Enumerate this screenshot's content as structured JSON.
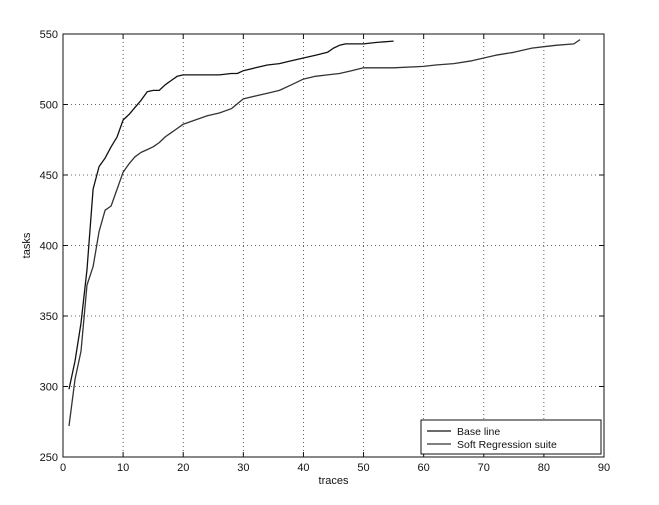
{
  "chart_data": {
    "type": "line",
    "xlabel": "traces",
    "ylabel": "tasks",
    "xlim": [
      0,
      90
    ],
    "ylim": [
      250,
      550
    ],
    "xticks": [
      0,
      10,
      20,
      30,
      40,
      50,
      60,
      70,
      80,
      90
    ],
    "yticks": [
      250,
      300,
      350,
      400,
      450,
      500,
      550
    ],
    "grid": true,
    "legend_position": "bottom-right",
    "series": [
      {
        "name": "Base line",
        "color": "#111111",
        "x": [
          1,
          2,
          3,
          4,
          5,
          6,
          7,
          8,
          9,
          10,
          11,
          12,
          13,
          14,
          15,
          16,
          17,
          18,
          19,
          20,
          22,
          24,
          26,
          28,
          29,
          30,
          32,
          34,
          36,
          38,
          40,
          42,
          44,
          45,
          46,
          47,
          48,
          50,
          52,
          55
        ],
        "y": [
          298,
          318,
          345,
          383,
          440,
          456,
          462,
          470,
          477,
          489,
          493,
          498,
          503,
          509,
          510,
          510,
          514,
          517,
          520,
          521,
          521,
          521,
          521,
          522,
          522,
          524,
          526,
          528,
          529,
          531,
          533,
          535,
          537,
          540,
          542,
          543,
          543,
          543,
          544,
          545
        ]
      },
      {
        "name": "Soft Regression suite",
        "color": "#333333",
        "x": [
          1,
          2,
          3,
          4,
          5,
          6,
          7,
          8,
          9,
          10,
          11,
          12,
          13,
          14,
          15,
          16,
          17,
          18,
          19,
          20,
          22,
          24,
          26,
          28,
          30,
          32,
          34,
          36,
          38,
          40,
          42,
          44,
          46,
          48,
          50,
          55,
          60,
          62,
          65,
          68,
          70,
          72,
          75,
          78,
          80,
          82,
          85,
          86
        ],
        "y": [
          272,
          305,
          325,
          372,
          385,
          410,
          425,
          428,
          440,
          452,
          458,
          463,
          466,
          468,
          470,
          473,
          477,
          480,
          483,
          486,
          489,
          492,
          494,
          497,
          504,
          506,
          508,
          510,
          514,
          518,
          520,
          521,
          522,
          524,
          526,
          526,
          527,
          528,
          529,
          531,
          533,
          535,
          537,
          540,
          541,
          542,
          543,
          546
        ]
      }
    ]
  }
}
